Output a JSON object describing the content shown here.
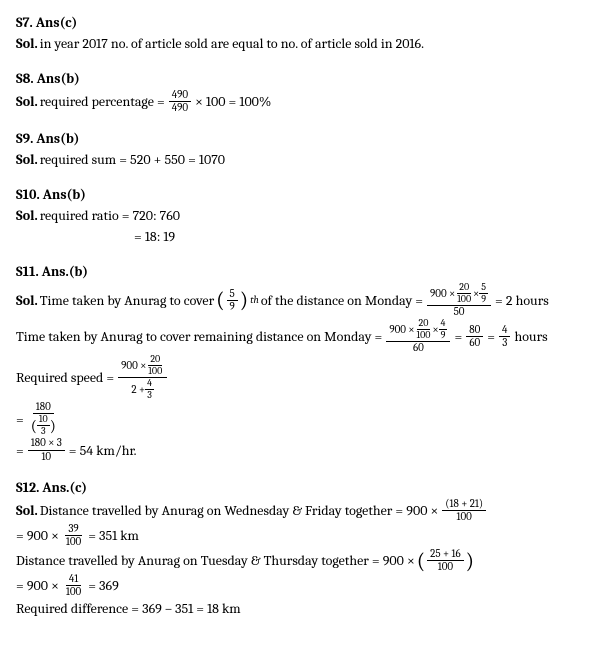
{
  "s7": {
    "heading": "S7. Ans(c)",
    "sol_label": "Sol.",
    "text": " in year 2017 no. of article sold are equal to no. of article sold in 2016."
  },
  "s8": {
    "heading": "S8. Ans(b)",
    "sol_label": "Sol.",
    "prefix": " required percentage = ",
    "frac_num": "490",
    "frac_den": "490",
    "suffix": " × 100 = 100%"
  },
  "s9": {
    "heading": "S9. Ans(b)",
    "sol_label": "Sol.",
    "text": " required sum = 520 + 550 = 1070"
  },
  "s10": {
    "heading": "S10. Ans(b)",
    "sol_label": "Sol.",
    "line1": " required ratio = 720: 760",
    "line2": "= 18: 19"
  },
  "s11": {
    "heading": "S11. Ans.(b)",
    "sol_label": "Sol.",
    "l1_prefix": " Time taken by Anurag to cover ",
    "l1_pfrac_num": "5",
    "l1_pfrac_den": "9",
    "l1_sup": "th",
    "l1_mid": " of the distance on Monday = ",
    "l1_big_num": "900 × ",
    "l1_inner1_num": "20",
    "l1_inner1_den": "100",
    "l1_big_num2": " × ",
    "l1_inner2_num": "5",
    "l1_inner2_den": "9",
    "l1_big_den": "50",
    "l1_suffix": " = 2 hours",
    "l2_prefix": "Time taken by Anurag to cover remaining distance on Monday = ",
    "l2_big_num": "900 × ",
    "l2_inner1_num": "20",
    "l2_inner1_den": "100",
    "l2_big_num2": " × ",
    "l2_inner2_num": "4",
    "l2_inner2_den": "9",
    "l2_big_den": "60",
    "l2_mid": " = ",
    "l2_f2_num": "80",
    "l2_f2_den": "60",
    "l2_mid2": " = ",
    "l2_f3_num": "4",
    "l2_f3_den": "3",
    "l2_suffix": " hours",
    "l3_prefix": "Required speed = ",
    "l3_num_a": "900 × ",
    "l3_num_inner_num": "20",
    "l3_num_inner_den": "100",
    "l3_den_a": "2 + ",
    "l3_den_inner_num": "4",
    "l3_den_inner_den": "3",
    "l4_eq": "= ",
    "l4_num": "180",
    "l4_den_paren_num": "10",
    "l4_den_paren_den": "3",
    "l5_eq": "= ",
    "l5_num": "180 × 3",
    "l5_den": "10",
    "l5_suffix": " = 54 km/hr."
  },
  "s12": {
    "heading": "S12. Ans.(c)",
    "sol_label": "Sol.",
    "l1_prefix": " Distance travelled by Anurag on Wednesday & Friday together = 900 × ",
    "l1_frac_num": "(18 + 21)",
    "l1_frac_den": "100",
    "l2_prefix": "= 900 × ",
    "l2_frac_num": "39",
    "l2_frac_den": "100",
    "l2_suffix": " = 351 km",
    "l3_prefix": "Distance travelled by Anurag on Tuesday & Thursday together = 900 × ",
    "l3_pfrac_num": "25 + 16",
    "l3_pfrac_den": "100",
    "l4_prefix": "= 900 × ",
    "l4_frac_num": "41",
    "l4_frac_den": "100",
    "l4_suffix": " = 369",
    "l5": "Required difference = 369 – 351 = 18 km"
  }
}
